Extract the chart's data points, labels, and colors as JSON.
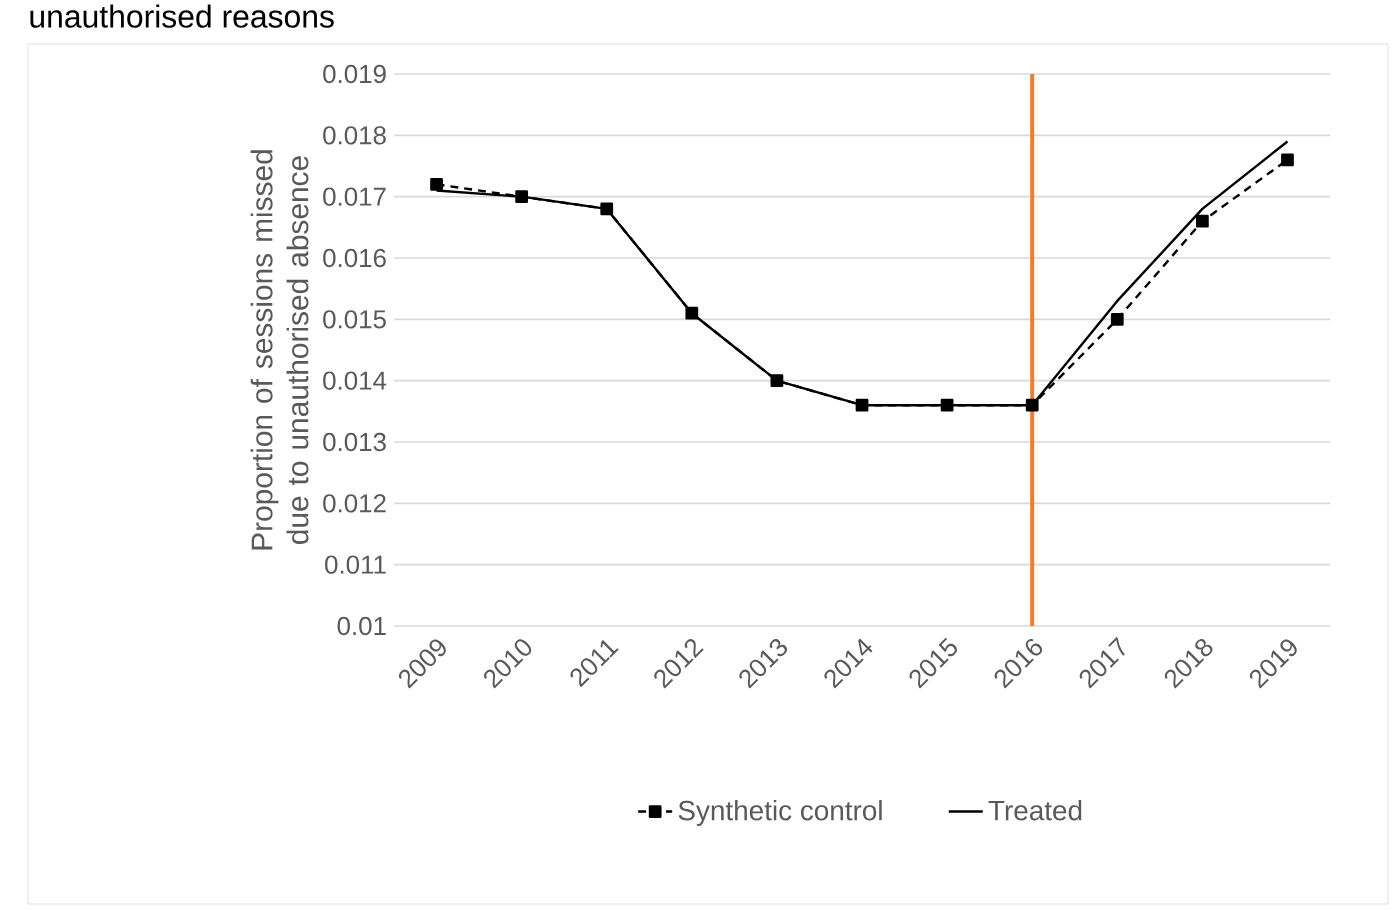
{
  "chart_data": {
    "type": "line",
    "title": "unauthorised reasons",
    "ylabel": "Proportion of sessions missed due to unauthorised absence",
    "x": [
      2009,
      2010,
      2011,
      2012,
      2013,
      2014,
      2015,
      2016,
      2017,
      2018,
      2019
    ],
    "xlim": [
      2008.5,
      2019.5
    ],
    "xticks": [
      2009,
      2010,
      2011,
      2012,
      2013,
      2014,
      2015,
      2016,
      2017,
      2018,
      2019
    ],
    "ylim": [
      0.01,
      0.019
    ],
    "yticks": [
      0.01,
      0.011,
      0.012,
      0.013,
      0.014,
      0.015,
      0.016,
      0.017,
      0.018,
      0.019
    ],
    "grid": "y",
    "legend": "bottom",
    "series": [
      {
        "name": "Synthetic control",
        "color": "#000000",
        "marker": "square",
        "line_style": "dashed",
        "values": [
          0.0172,
          0.017,
          0.0168,
          0.0151,
          0.014,
          0.0136,
          0.0136,
          0.0136,
          0.015,
          0.0166,
          0.0176
        ]
      },
      {
        "name": "Treated",
        "color": "#000000",
        "marker": "none",
        "line_style": "solid",
        "values": [
          0.0171,
          0.017,
          0.0168,
          0.0151,
          0.014,
          0.0136,
          0.0136,
          0.0136,
          0.0153,
          0.0168,
          0.0179
        ]
      }
    ],
    "ref_lines": [
      {
        "axis": "x",
        "value": 2016,
        "color": "#ed7d31",
        "line_style": "solid"
      }
    ]
  }
}
